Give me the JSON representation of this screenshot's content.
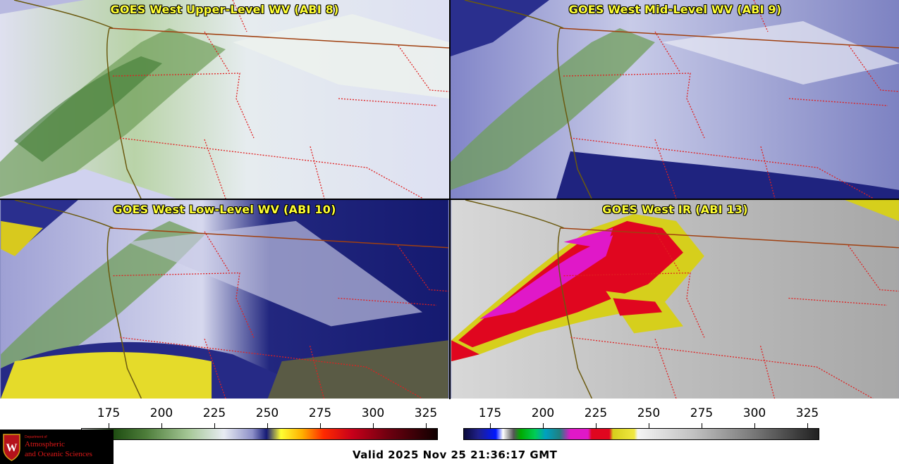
{
  "panels": [
    {
      "title": "GOES West Upper-Level WV (ABI 8)"
    },
    {
      "title": "GOES West Mid-Level WV (ABI 9)"
    },
    {
      "title": "GOES West Low-Level WV (ABI 10)"
    },
    {
      "title": "GOES West IR (ABI 13)"
    }
  ],
  "colorbars": [
    {
      "ticks": [
        "175",
        "200",
        "225",
        "250",
        "275",
        "300",
        "325"
      ]
    },
    {
      "ticks": [
        "175",
        "200",
        "225",
        "250",
        "275",
        "300",
        "325"
      ]
    }
  ],
  "valid_time": "Valid 2025 Nov 25 21:36:17 GMT",
  "logo": {
    "dept": "Department of",
    "line1": "Atmospheric",
    "line2": "and Oceanic Sciences"
  },
  "colors": {
    "title_yellow": "#ffff33",
    "border_state": "#e02020",
    "border_country": "#a04010",
    "coast": "#6b5a10",
    "logo_red": "#e01818"
  }
}
